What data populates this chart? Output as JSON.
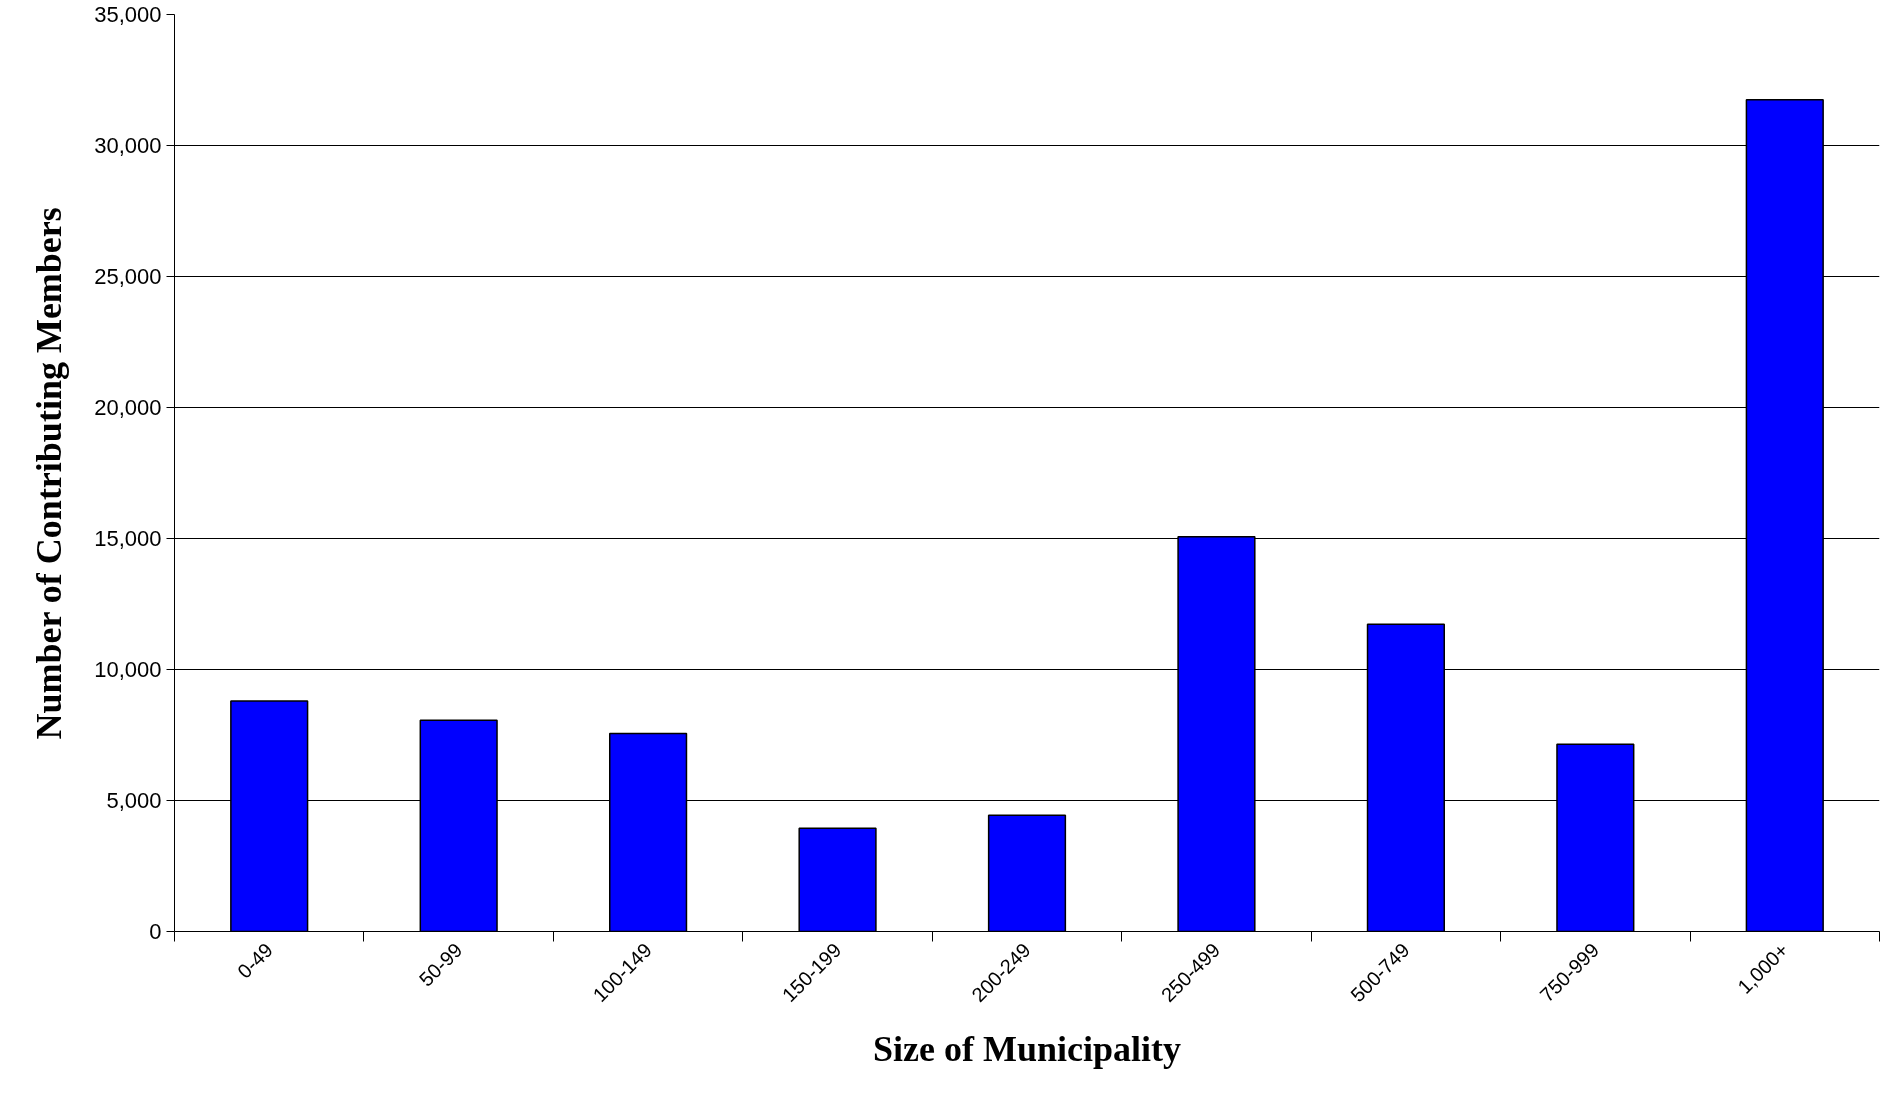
{
  "chart_data": {
    "type": "bar",
    "xlabel": "Size of Municipality",
    "ylabel": "Number of Contributing Members",
    "categories": [
      "0-49",
      "50-99",
      "100-149",
      "150-199",
      "200-249",
      "250-499",
      "500-749",
      "750-999",
      "1,000+"
    ],
    "values": [
      8800,
      8060,
      7560,
      3940,
      4440,
      15070,
      11730,
      7150,
      31750
    ],
    "color": "#0000ff",
    "ylim": [
      0,
      35000
    ],
    "yticks": [
      {
        "value": 0,
        "label": "0"
      },
      {
        "value": 5000,
        "label": "5,000"
      },
      {
        "value": 10000,
        "label": "10,000"
      },
      {
        "value": 15000,
        "label": "15,000"
      },
      {
        "value": 20000,
        "label": "20,000"
      },
      {
        "value": 25000,
        "label": "25,000"
      },
      {
        "value": 30000,
        "label": "30,000"
      },
      {
        "value": 35000,
        "label": "35,000"
      }
    ],
    "grid": "y"
  }
}
